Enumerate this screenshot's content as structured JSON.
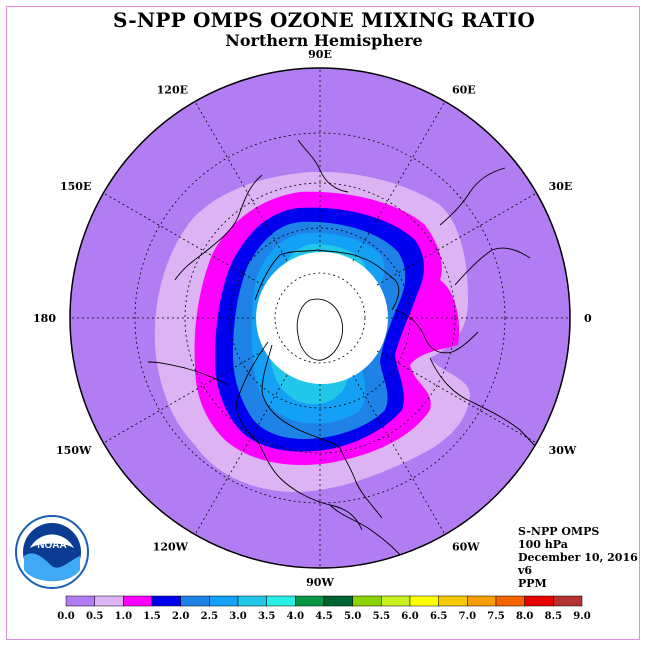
{
  "title": "S-NPP OMPS OZONE MIXING RATIO",
  "subtitle": "Northern Hemisphere",
  "map": {
    "projection": "north-polar-stereographic",
    "longitude_labels": [
      {
        "text": "120E",
        "lon": 120
      },
      {
        "text": "90E",
        "lon": 90
      },
      {
        "text": "60E",
        "lon": 60
      },
      {
        "text": "30E",
        "lon": 30
      },
      {
        "text": "0",
        "lon": 0
      },
      {
        "text": "30W",
        "lon": -30
      },
      {
        "text": "60W",
        "lon": -60
      },
      {
        "text": "90W",
        "lon": -90
      },
      {
        "text": "120W",
        "lon": -120
      },
      {
        "text": "150W",
        "lon": -150
      },
      {
        "text": "180",
        "lon": 180
      },
      {
        "text": "150E",
        "lon": 150
      }
    ],
    "polar_region_no_data": true,
    "field_colors": {
      "0.0-0.5": "#b27cf3",
      "0.5-1.0": "#dcb4f4",
      "1.0-1.5": "#ff00ff",
      "1.5-2.0": "#0000ee",
      "2.0-2.5": "#1e82e6",
      "2.5-3.0": "#14a0f5",
      "3.0-3.5": "#22c6e8"
    }
  },
  "info": {
    "instrument": "S-NPP OMPS",
    "level": "100 hPa",
    "date": "December 10, 2016",
    "version": "v6",
    "units": "PPM"
  },
  "colorbar": {
    "ticks": [
      "0.0",
      "0.5",
      "1.0",
      "1.5",
      "2.0",
      "2.5",
      "3.0",
      "3.5",
      "4.0",
      "4.5",
      "5.0",
      "5.5",
      "6.0",
      "6.5",
      "7.0",
      "7.5",
      "8.0",
      "8.5",
      "9.0"
    ],
    "colors": [
      "#b27cf3",
      "#dcb4f4",
      "#ff00ff",
      "#0000ee",
      "#1e82e6",
      "#14a0f5",
      "#22c6e8",
      "#28f0e6",
      "#0a9646",
      "#006432",
      "#8cd200",
      "#c8f01e",
      "#ffff00",
      "#f5c800",
      "#f5a000",
      "#f56400",
      "#e60000",
      "#b43232"
    ]
  },
  "logo": {
    "text": "NOAA"
  }
}
